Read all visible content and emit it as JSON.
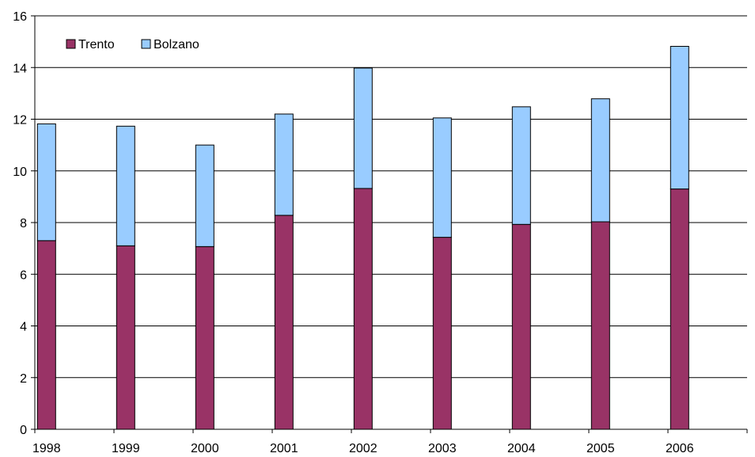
{
  "chart_data": {
    "type": "bar",
    "stacked": true,
    "categories": [
      "1998",
      "1999",
      "2000",
      "2001",
      "2002",
      "2003",
      "2004",
      "2005",
      "2006"
    ],
    "series": [
      {
        "name": "Trento",
        "color": "#993366",
        "values": [
          7.3,
          7.1,
          7.07,
          8.28,
          9.32,
          7.43,
          7.93,
          8.03,
          9.3
        ]
      },
      {
        "name": "Bolzano",
        "color": "#99CCFF",
        "values": [
          4.52,
          4.63,
          3.93,
          3.92,
          4.66,
          4.62,
          4.55,
          4.76,
          5.52
        ]
      }
    ],
    "title": "",
    "xlabel": "",
    "ylabel": "",
    "ylim": [
      0,
      16
    ],
    "yticks": [
      "0",
      "2",
      "4",
      "6",
      "8",
      "10",
      "12",
      "14",
      "16"
    ],
    "grid": true,
    "legend_position": "top-left"
  }
}
